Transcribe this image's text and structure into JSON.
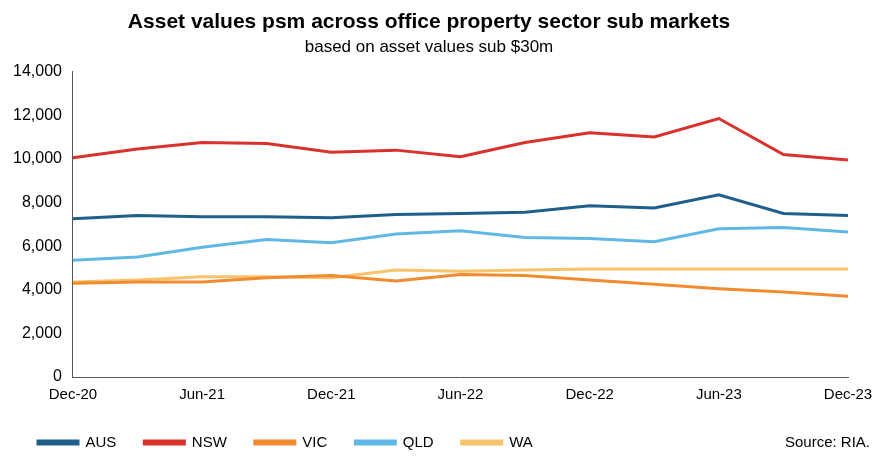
{
  "chart_data": {
    "type": "line",
    "title": "Asset values psm across office property sector sub markets",
    "subtitle": "based on asset values sub $30m",
    "annotations": [
      "Source: RIA."
    ],
    "categories": [
      "Dec-20",
      null,
      "Jun-21",
      null,
      "Dec-21",
      null,
      "Jun-22",
      null,
      "Dec-22",
      null,
      "Jun-23",
      null,
      "Dec-23"
    ],
    "series": [
      {
        "name": "AUS",
        "color": "#1f5f8b",
        "values": [
          7250,
          7400,
          7350,
          7350,
          7300,
          7450,
          7500,
          7550,
          7850,
          7750,
          8350,
          7500,
          7400
        ]
      },
      {
        "name": "NSW",
        "color": "#d9312b",
        "values": [
          10050,
          10450,
          10750,
          10700,
          10300,
          10400,
          10100,
          10750,
          11200,
          11000,
          11850,
          10200,
          9950
        ]
      },
      {
        "name": "VIC",
        "color": "#f28a30",
        "values": [
          4300,
          4350,
          4350,
          4550,
          4650,
          4400,
          4700,
          4650,
          4450,
          4250,
          4050,
          3900,
          3700
        ]
      },
      {
        "name": "QLD",
        "color": "#5fb8e6",
        "values": [
          5350,
          5500,
          5950,
          6300,
          6150,
          6550,
          6700,
          6400,
          6350,
          6200,
          6800,
          6850,
          6650
        ]
      },
      {
        "name": "WA",
        "color": "#f7c46c",
        "values": [
          4350,
          4450,
          4600,
          4600,
          4550,
          4900,
          4850,
          4900,
          4950,
          4950,
          4950,
          4950,
          4950
        ]
      }
    ],
    "ylim": [
      0,
      14000
    ],
    "yticks": [
      0,
      {
        "value": 2000,
        "label": "2,000"
      },
      {
        "value": 4000,
        "label": "4,000"
      },
      {
        "value": 6000,
        "label": "6,000"
      },
      {
        "value": 8000,
        "label": "8,000"
      },
      {
        "value": 10000,
        "label": "10,000"
      },
      {
        "value": 12000,
        "label": "12,000"
      },
      {
        "value": 14000,
        "label": "14,000"
      }
    ],
    "grid": false,
    "legend": "bottom",
    "marker": "none",
    "line_style": "solid"
  }
}
